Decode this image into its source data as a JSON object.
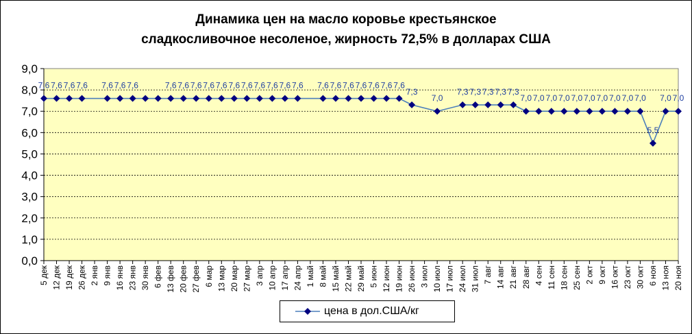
{
  "chart_data": {
    "type": "line",
    "title_line1": "Динамика цен на масло коровье крестьянское",
    "title_line2": "сладкосливочное несоленое, жирность  72,5%  в долларах США",
    "xlabel": "",
    "ylabel": "",
    "ylim": [
      0,
      9
    ],
    "yticks": [
      "0,0",
      "1,0",
      "2,0",
      "3,0",
      "4,0",
      "5,0",
      "6,0",
      "7,0",
      "8,0",
      "9,0"
    ],
    "grid": true,
    "legend_placement": "bottom",
    "plot_bg": "#FFFFC0",
    "line_color": "#4A7EBB",
    "marker_color": "#000080",
    "label_color": "#1F3FA0",
    "categories": [
      "5 дек",
      "12 дек",
      "19 дек",
      "26 дек",
      "2 янв",
      "9 янв",
      "16 янв",
      "23 янв",
      "30 янв",
      "6 фев",
      "13 фев",
      "20 фев",
      "27 фев",
      "6 мар",
      "13 мар",
      "20 мар",
      "27 мар",
      "3 апр",
      "10 апр",
      "17 апр",
      "24 апр",
      "1 май",
      "8 май",
      "15 май",
      "22 май",
      "29 май",
      "5 июн",
      "12 июн",
      "19 июн",
      "26 июн",
      "3 июл",
      "10 июл",
      "17 июл",
      "24 июл",
      "31 июл",
      "7 авг",
      "14 авг",
      "21 авг",
      "28 авг",
      "4 сен",
      "11 сен",
      "18 сен",
      "25 сен",
      "2 окт",
      "9 окт",
      "16 окт",
      "23 окт",
      "30 окт",
      "6 ноя",
      "13 ноя",
      "20 ноя"
    ],
    "series": [
      {
        "name": "цена в дол.США/кг",
        "values": [
          7.6,
          7.6,
          7.6,
          7.6,
          null,
          7.6,
          7.6,
          7.6,
          7.6,
          7.6,
          7.6,
          7.6,
          7.6,
          7.6,
          7.6,
          7.6,
          7.6,
          7.6,
          7.6,
          7.6,
          7.6,
          null,
          7.6,
          7.6,
          7.6,
          7.6,
          7.6,
          7.6,
          7.6,
          7.3,
          null,
          7.0,
          null,
          7.3,
          7.3,
          7.3,
          7.3,
          7.3,
          7.0,
          7.0,
          7.0,
          7.0,
          7.0,
          7.0,
          7.0,
          7.0,
          7.0,
          7.0,
          5.5,
          7.0,
          7.0
        ],
        "labels": [
          "7,6",
          "7,6",
          "7,6",
          "7,6",
          "",
          "7,6",
          "7,6",
          "7,6",
          "",
          "",
          "7,6",
          "7,6",
          "7,6",
          "7,6",
          "7,6",
          "7,6",
          "7,6",
          "7,6",
          "7,6",
          "7,6",
          "7,6",
          "",
          "7,6",
          "7,6",
          "7,6",
          "7,6",
          "7,6",
          "7,6",
          "7,6",
          "7,3",
          "",
          "7,0",
          "",
          "7,3",
          "7,3",
          "7,3",
          "7,3",
          "7,3",
          "7,0",
          "7,0",
          "7,0",
          "7,0",
          "7,0",
          "7,0",
          "7,0",
          "7,0",
          "7,0",
          "7,0",
          "5,5",
          "7,0",
          "7,0"
        ]
      }
    ]
  }
}
